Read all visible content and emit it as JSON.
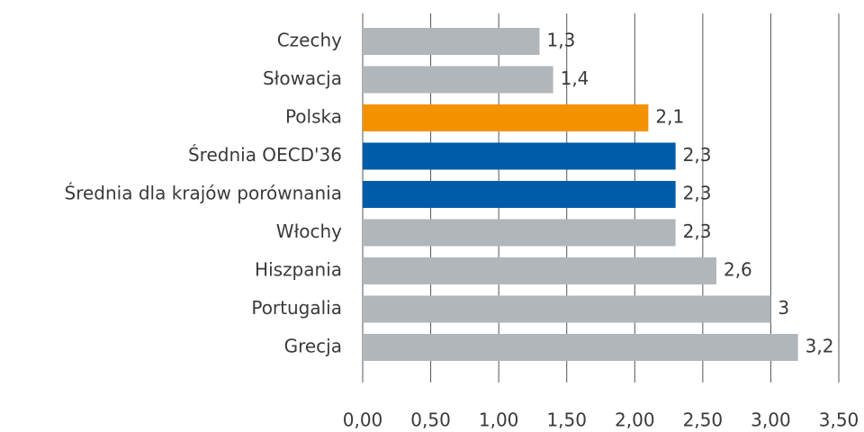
{
  "chart_data": {
    "type": "barh",
    "categories": [
      "Czechy",
      "Słowacja",
      "Polska",
      "Średnia OECD'36",
      "Średnia dla krajów porównania",
      "Włochy",
      "Hiszpania",
      "Portugalia",
      "Grecja"
    ],
    "values": [
      1.3,
      1.4,
      2.1,
      2.3,
      2.3,
      2.3,
      2.6,
      3,
      3.2
    ],
    "value_labels": [
      "1,3",
      "1,4",
      "2,1",
      "2,3",
      "2,3",
      "2,3",
      "2,6",
      "3",
      "3,2"
    ],
    "colors": [
      "#b1b6ba",
      "#b1b6ba",
      "#f39200",
      "#005ca9",
      "#005ca9",
      "#b1b6ba",
      "#b1b6ba",
      "#b1b6ba",
      "#b1b6ba"
    ],
    "xlim": [
      0,
      3.5
    ],
    "xticks": [
      {
        "value": 0,
        "label": "0,00"
      },
      {
        "value": 0.5,
        "label": "0,50"
      },
      {
        "value": 1,
        "label": "1,00"
      },
      {
        "value": 1.5,
        "label": "1,50"
      },
      {
        "value": 2,
        "label": "2,00"
      },
      {
        "value": 2.5,
        "label": "2,50"
      },
      {
        "value": 3,
        "label": "3,00"
      },
      {
        "value": 3.5,
        "label": "3,50"
      }
    ],
    "grid": true
  }
}
